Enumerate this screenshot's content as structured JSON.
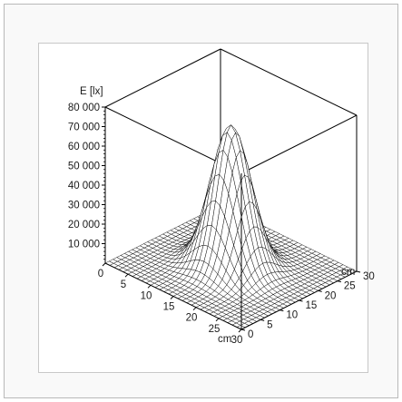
{
  "chart_data": {
    "type": "surface",
    "title": "",
    "zlabel": "E [lx]",
    "xlabel": "cm",
    "ylabel": "cm",
    "x_ticks": [
      0,
      5,
      10,
      15,
      20,
      25,
      30
    ],
    "y_ticks": [
      0,
      5,
      10,
      15,
      20,
      25,
      30
    ],
    "z_ticks": [
      "80 000",
      "70 000",
      "60 000",
      "50 000",
      "40 000",
      "30 000",
      "20 000",
      "10 000"
    ],
    "z_tick_values": [
      80000,
      70000,
      60000,
      50000,
      40000,
      30000,
      20000,
      10000
    ],
    "xlim": [
      0,
      30
    ],
    "ylim": [
      0,
      30
    ],
    "zlim": [
      0,
      80000
    ],
    "peak": {
      "x": 15,
      "y": 15,
      "value": 73000
    },
    "spread_sigma_cm": 3.5,
    "grid": false,
    "mesh_color": "#000000",
    "surface_color": "#ffffff"
  }
}
